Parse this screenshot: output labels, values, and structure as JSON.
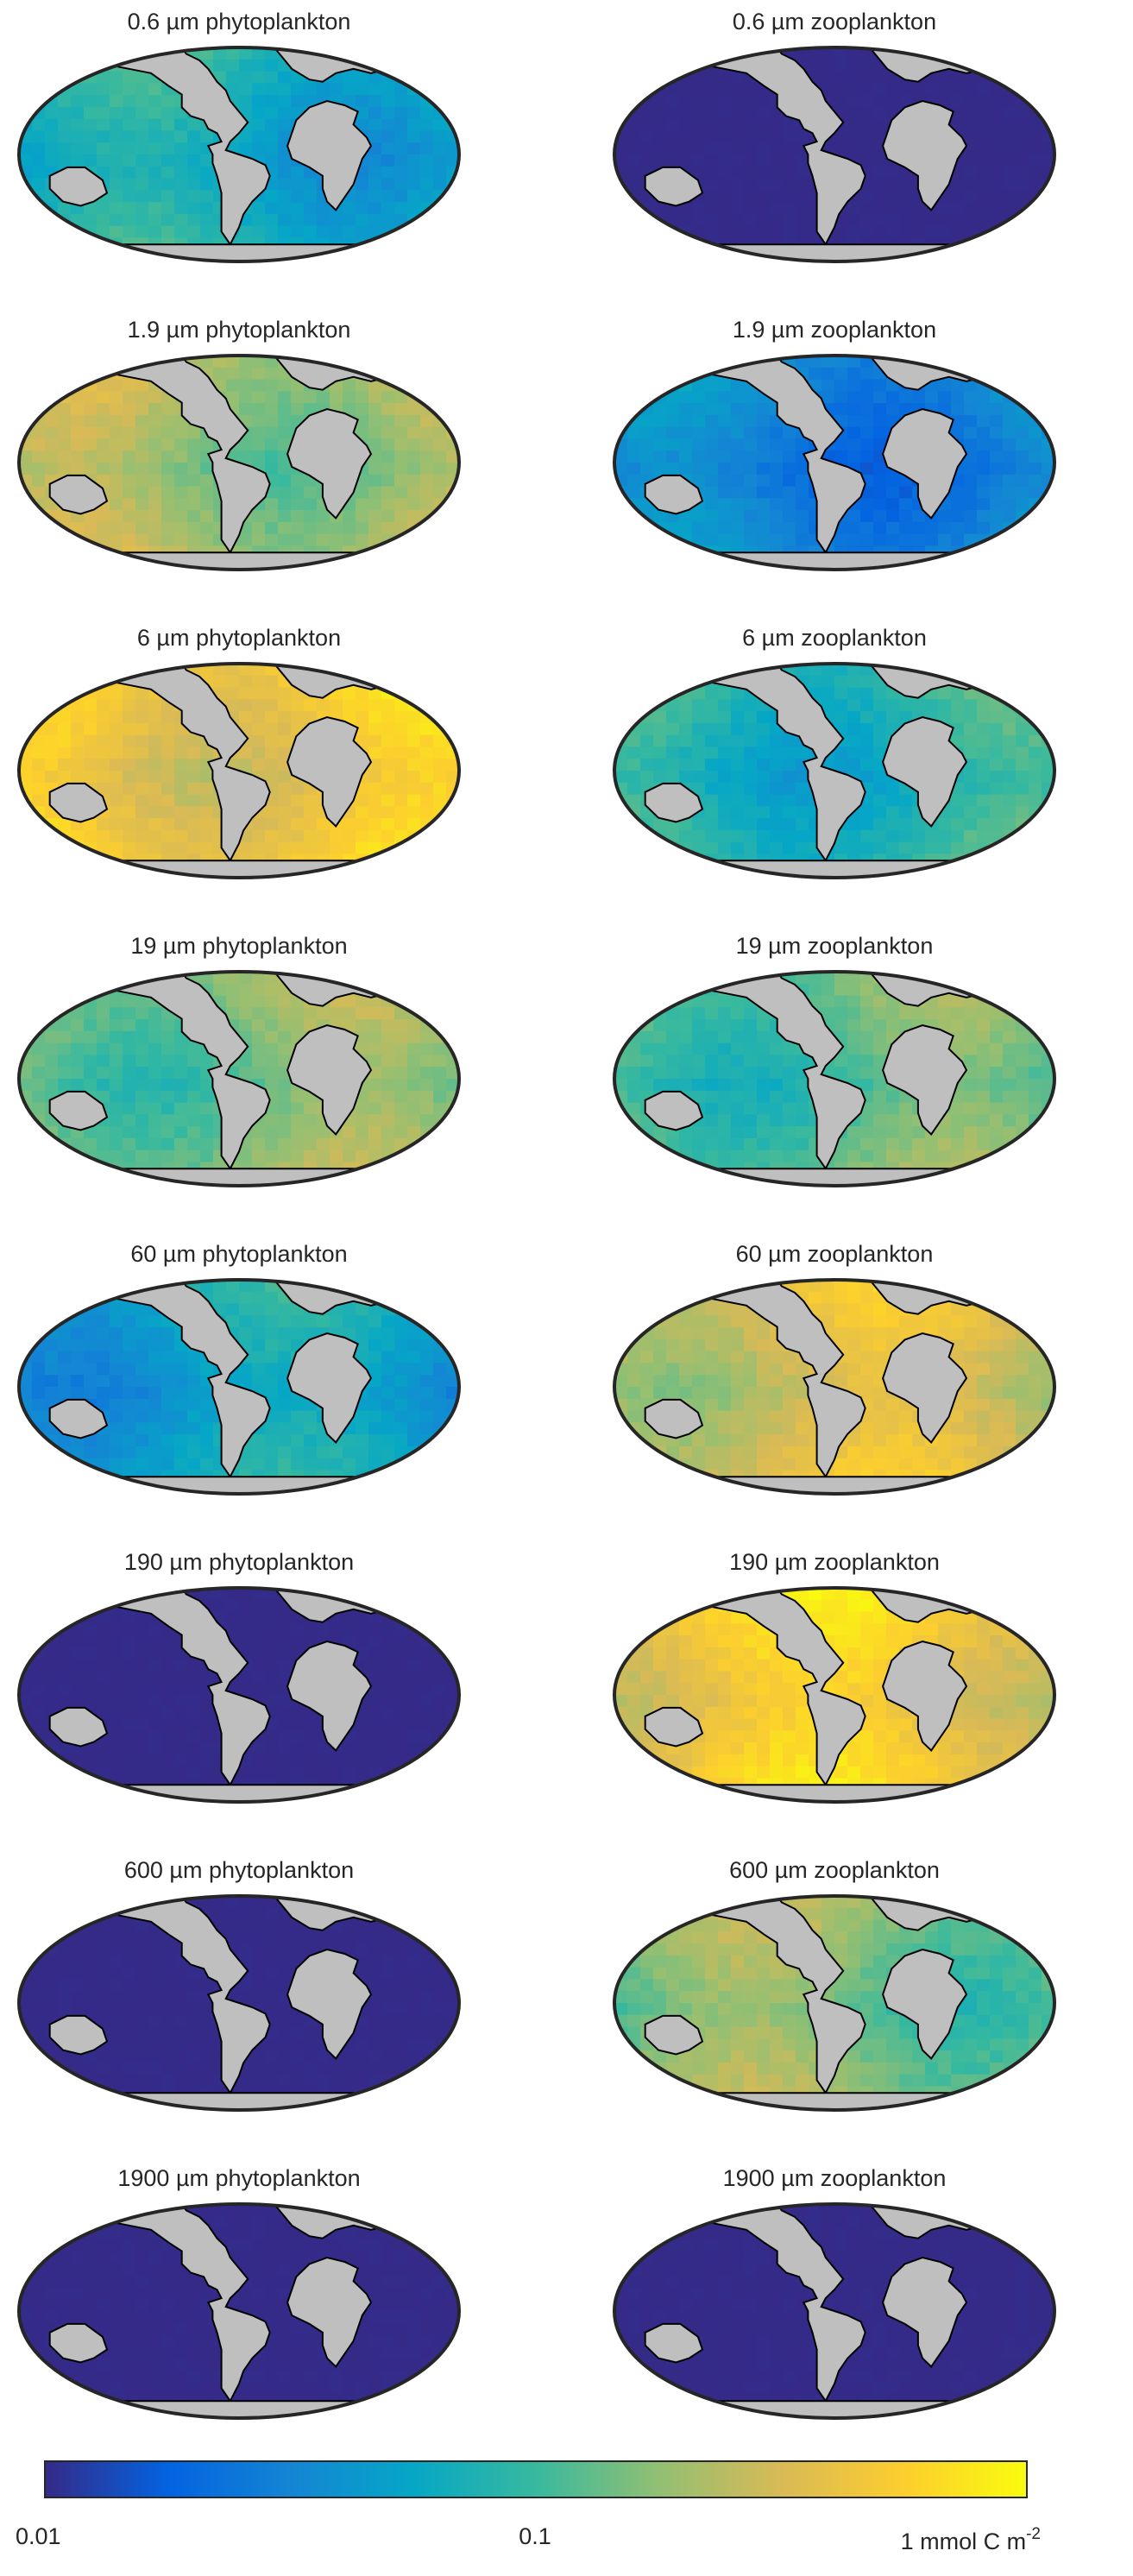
{
  "figure": {
    "colormap": "parula",
    "color_scale": "log",
    "land_color": "#bfbfbf",
    "rows": [
      {
        "left": {
          "title": "0.6 µm phytoplankton",
          "base": 0.06
        },
        "right": {
          "title": "0.6 µm zooplankton",
          "base": 0.01
        }
      },
      {
        "left": {
          "title": "1.9 µm phytoplankton",
          "base": 0.2
        },
        "right": {
          "title": "1.9 µm zooplankton",
          "base": 0.03
        }
      },
      {
        "left": {
          "title": "6 µm phytoplankton",
          "base": 0.45
        },
        "right": {
          "title": "6 µm zooplankton",
          "base": 0.08
        }
      },
      {
        "left": {
          "title": "19 µm phytoplankton",
          "base": 0.15
        },
        "right": {
          "title": "19 µm zooplankton",
          "base": 0.12
        }
      },
      {
        "left": {
          "title": "60 µm phytoplankton",
          "base": 0.05
        },
        "right": {
          "title": "60 µm zooplankton",
          "base": 0.3
        }
      },
      {
        "left": {
          "title": "190 µm phytoplankton",
          "base": 0.01
        },
        "right": {
          "title": "190 µm zooplankton",
          "base": 0.45
        }
      },
      {
        "left": {
          "title": "600 µm phytoplankton",
          "base": 0.01
        },
        "right": {
          "title": "600 µm zooplankton",
          "base": 0.15
        }
      },
      {
        "left": {
          "title": "1900 µm phytoplankton",
          "base": 0.01
        },
        "right": {
          "title": "1900 µm zooplankton",
          "base": 0.01
        }
      }
    ]
  },
  "colorbar": {
    "min_label": "0.01",
    "mid_label": "0.1",
    "max_label": "1 mmol C m",
    "max_label_exponent": "-2",
    "stops": [
      "#352a87",
      "#0363e1",
      "#1485d4",
      "#06a7c6",
      "#38b99e",
      "#92bf73",
      "#d9ba56",
      "#fcce2e",
      "#f9fb0e"
    ]
  }
}
